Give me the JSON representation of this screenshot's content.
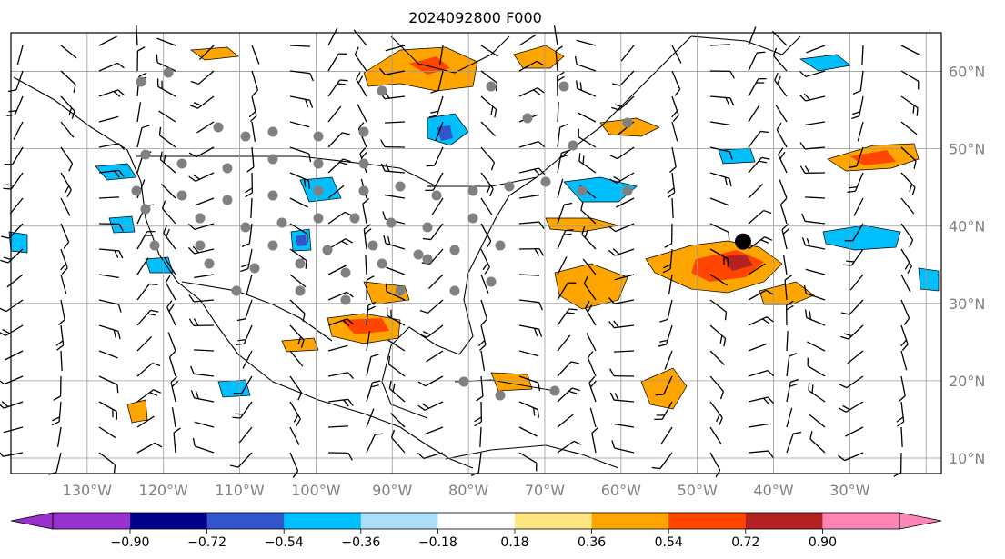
{
  "title": "2024092800 F000",
  "map": {
    "lon_range": [
      -140,
      -18
    ],
    "lat_range": [
      8,
      65
    ],
    "lon_labels": [
      "130°W",
      "120°W",
      "110°W",
      "100°W",
      "90°W",
      "80°W",
      "70°W",
      "60°W",
      "50°W",
      "40°W",
      "30°W"
    ],
    "lat_labels": [
      "60°N",
      "50°N",
      "40°N",
      "30°N",
      "20°N",
      "10°N"
    ],
    "gridlines": true,
    "marker": {
      "lon": -44,
      "lat": 38
    }
  },
  "colorbar": {
    "orientation": "horizontal",
    "extend": "both",
    "tick_labels": [
      "−0.90",
      "−0.72",
      "−0.54",
      "−0.36",
      "−0.18",
      "0.18",
      "0.36",
      "0.54",
      "0.72",
      "0.90"
    ],
    "colors": {
      "below_min": "#9932cc",
      "neg_090_072": "#00008b",
      "neg_072_054": "#3355cc",
      "neg_054_036": "#00bfff",
      "neg_036_018": "#aadff7",
      "neutral": "#ffffff",
      "pos_018_036": "#ffe680",
      "pos_036_054": "#ffa500",
      "pos_054_072": "#ff4500",
      "pos_072_090": "#b22222",
      "above_max": "#ff85b4"
    }
  }
}
